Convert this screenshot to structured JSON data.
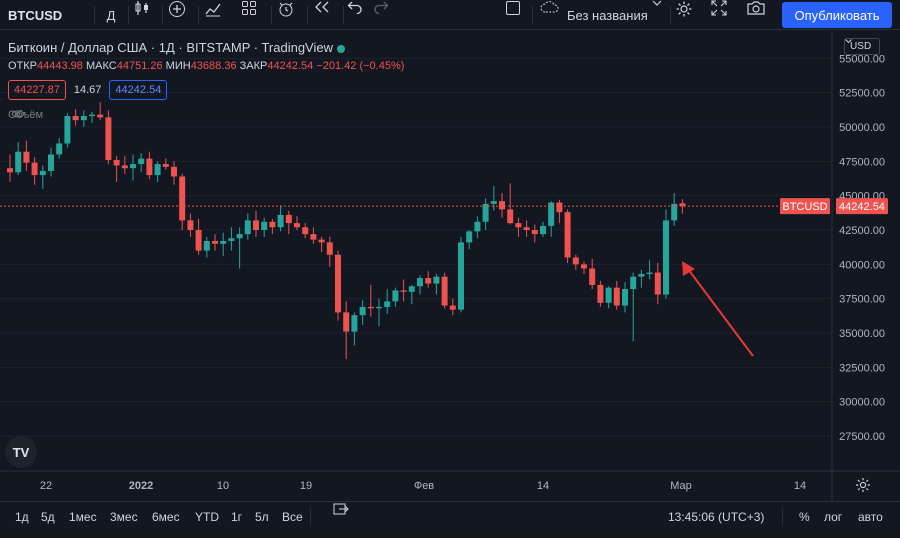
{
  "toolbar": {
    "symbol": "BTCUSD",
    "interval": "Д",
    "layout_name": "Без названия",
    "publish_label": "Опубликовать"
  },
  "legend": {
    "title": "Биткоин / Доллар США · 1Д · BITSTAMP · TradingView",
    "open_label": "ОТКР",
    "open_value": "44443.98",
    "high_label": "МАКС",
    "high_value": "44751.26",
    "low_label": "МИН",
    "low_value": "43688.36",
    "close_label": "ЗАКР",
    "close_value": "44242.54",
    "change": "−201.42 (−0.45%)",
    "sell_price": "44227.87",
    "spread": "14.67",
    "buy_price": "44242.54",
    "volume_label": "Объём"
  },
  "price_axis": {
    "currency": "USD",
    "ticks": [
      "55000.00",
      "52500.00",
      "50000.00",
      "47500.00",
      "45000.00",
      "42500.00",
      "40000.00",
      "37500.00",
      "35000.00",
      "32500.00",
      "30000.00",
      "27500.00"
    ],
    "last_symbol": "BTCUSD",
    "last_price": "44242.54"
  },
  "time_axis": {
    "labels": [
      "22",
      "2022",
      "10",
      "19",
      "Фев",
      "14",
      "Мар",
      "14"
    ]
  },
  "bottom_bar": {
    "ranges": [
      "1д",
      "5д",
      "1мес",
      "3мес",
      "6мес",
      "YTD",
      "1г",
      "5л",
      "Все"
    ],
    "time": "13:45:06 (UTC+3)",
    "percent": "%",
    "log": "лог",
    "auto": "авто"
  },
  "colors": {
    "up": "#26a69a",
    "down": "#ef5350",
    "background": "#131722",
    "accent": "#2962ff",
    "annotation_arrow": "#e53935"
  },
  "chart_data": {
    "type": "candlestick",
    "title": "Биткоин / Доллар США · 1Д · BITSTAMP",
    "x_start": "2021-12-14",
    "x_step": "1 day",
    "ylim": [
      26000,
      56500
    ],
    "last_price": 44242.54,
    "annotation": "red arrow pointing at the latest bullish candles",
    "candles": [
      [
        47000,
        48000,
        46000,
        46700
      ],
      [
        46700,
        48900,
        46500,
        48200
      ],
      [
        48200,
        49000,
        46800,
        47400
      ],
      [
        47400,
        47800,
        45800,
        46500
      ],
      [
        46500,
        47200,
        45500,
        46800
      ],
      [
        46800,
        48500,
        46400,
        48000
      ],
      [
        48000,
        49200,
        47700,
        48800
      ],
      [
        48800,
        51000,
        48500,
        50800
      ],
      [
        50800,
        51300,
        50100,
        50500
      ],
      [
        50500,
        51200,
        50000,
        50800
      ],
      [
        50800,
        51100,
        50300,
        50900
      ],
      [
        50900,
        51800,
        50500,
        50700
      ],
      [
        50700,
        51200,
        47300,
        47600
      ],
      [
        47600,
        47900,
        46000,
        47200
      ],
      [
        47200,
        47900,
        46600,
        47000
      ],
      [
        47000,
        48000,
        46100,
        47300
      ],
      [
        47300,
        48100,
        46700,
        47700
      ],
      [
        47700,
        48200,
        46200,
        46500
      ],
      [
        46500,
        47500,
        46000,
        47300
      ],
      [
        47300,
        47700,
        46900,
        47100
      ],
      [
        47100,
        47500,
        45800,
        46400
      ],
      [
        46400,
        46600,
        42500,
        43200
      ],
      [
        43200,
        43700,
        42000,
        42500
      ],
      [
        42500,
        43300,
        40700,
        41000
      ],
      [
        41000,
        42000,
        40500,
        41700
      ],
      [
        41700,
        42200,
        41000,
        41500
      ],
      [
        41500,
        42300,
        40600,
        41700
      ],
      [
        41700,
        42700,
        41000,
        41900
      ],
      [
        41900,
        42700,
        39700,
        42200
      ],
      [
        42200,
        43700,
        41800,
        43200
      ],
      [
        43200,
        43900,
        42000,
        42500
      ],
      [
        42500,
        43400,
        42000,
        43100
      ],
      [
        43100,
        43300,
        42200,
        42700
      ],
      [
        42700,
        44300,
        42400,
        43600
      ],
      [
        43600,
        43900,
        42200,
        43000
      ],
      [
        43000,
        43500,
        42500,
        42700
      ],
      [
        42700,
        43000,
        41900,
        42200
      ],
      [
        42200,
        42700,
        41500,
        41800
      ],
      [
        41800,
        42000,
        40900,
        41600
      ],
      [
        41600,
        42000,
        39800,
        40700
      ],
      [
        40700,
        41000,
        35900,
        36500
      ],
      [
        36500,
        37300,
        33100,
        35100
      ],
      [
        35100,
        36500,
        34100,
        36300
      ],
      [
        36300,
        37400,
        35600,
        36900
      ],
      [
        36900,
        38500,
        36200,
        36800
      ],
      [
        36800,
        37500,
        35500,
        36900
      ],
      [
        36900,
        38200,
        36400,
        37300
      ],
      [
        37300,
        38300,
        36900,
        38100
      ],
      [
        38100,
        38900,
        37300,
        38000
      ],
      [
        38000,
        38500,
        37100,
        38400
      ],
      [
        38400,
        39200,
        37800,
        39000
      ],
      [
        39000,
        39500,
        38300,
        38600
      ],
      [
        38600,
        39300,
        37800,
        39100
      ],
      [
        39100,
        39400,
        36800,
        37000
      ],
      [
        37000,
        37500,
        36300,
        36700
      ],
      [
        36700,
        42000,
        36500,
        41600
      ],
      [
        41600,
        42500,
        41100,
        42400
      ],
      [
        42400,
        43500,
        41900,
        43100
      ],
      [
        43100,
        44800,
        42500,
        44400
      ],
      [
        44400,
        45700,
        43900,
        44600
      ],
      [
        44600,
        45200,
        43400,
        44000
      ],
      [
        44000,
        45900,
        42900,
        43000
      ],
      [
        43000,
        43400,
        42000,
        42700
      ],
      [
        42700,
        43200,
        42000,
        42500
      ],
      [
        42500,
        42900,
        41600,
        42200
      ],
      [
        42200,
        43100,
        42000,
        42800
      ],
      [
        42800,
        44600,
        42000,
        44500
      ],
      [
        44500,
        44700,
        43000,
        43800
      ],
      [
        43800,
        44000,
        40100,
        40500
      ],
      [
        40500,
        40700,
        39600,
        40000
      ],
      [
        40000,
        40200,
        39300,
        39700
      ],
      [
        39700,
        40400,
        38200,
        38500
      ],
      [
        38500,
        38800,
        36900,
        37200
      ],
      [
        37200,
        38400,
        36800,
        38300
      ],
      [
        38300,
        38800,
        36700,
        37000
      ],
      [
        37000,
        38700,
        36500,
        38200
      ],
      [
        38200,
        39400,
        34400,
        39100
      ],
      [
        39100,
        39600,
        38300,
        39300
      ],
      [
        39300,
        40300,
        38900,
        39400
      ],
      [
        39400,
        40100,
        37100,
        37800
      ],
      [
        37800,
        44000,
        37500,
        43200
      ],
      [
        43200,
        45200,
        42800,
        44400
      ],
      [
        44444,
        44751,
        43688,
        44243
      ]
    ]
  }
}
